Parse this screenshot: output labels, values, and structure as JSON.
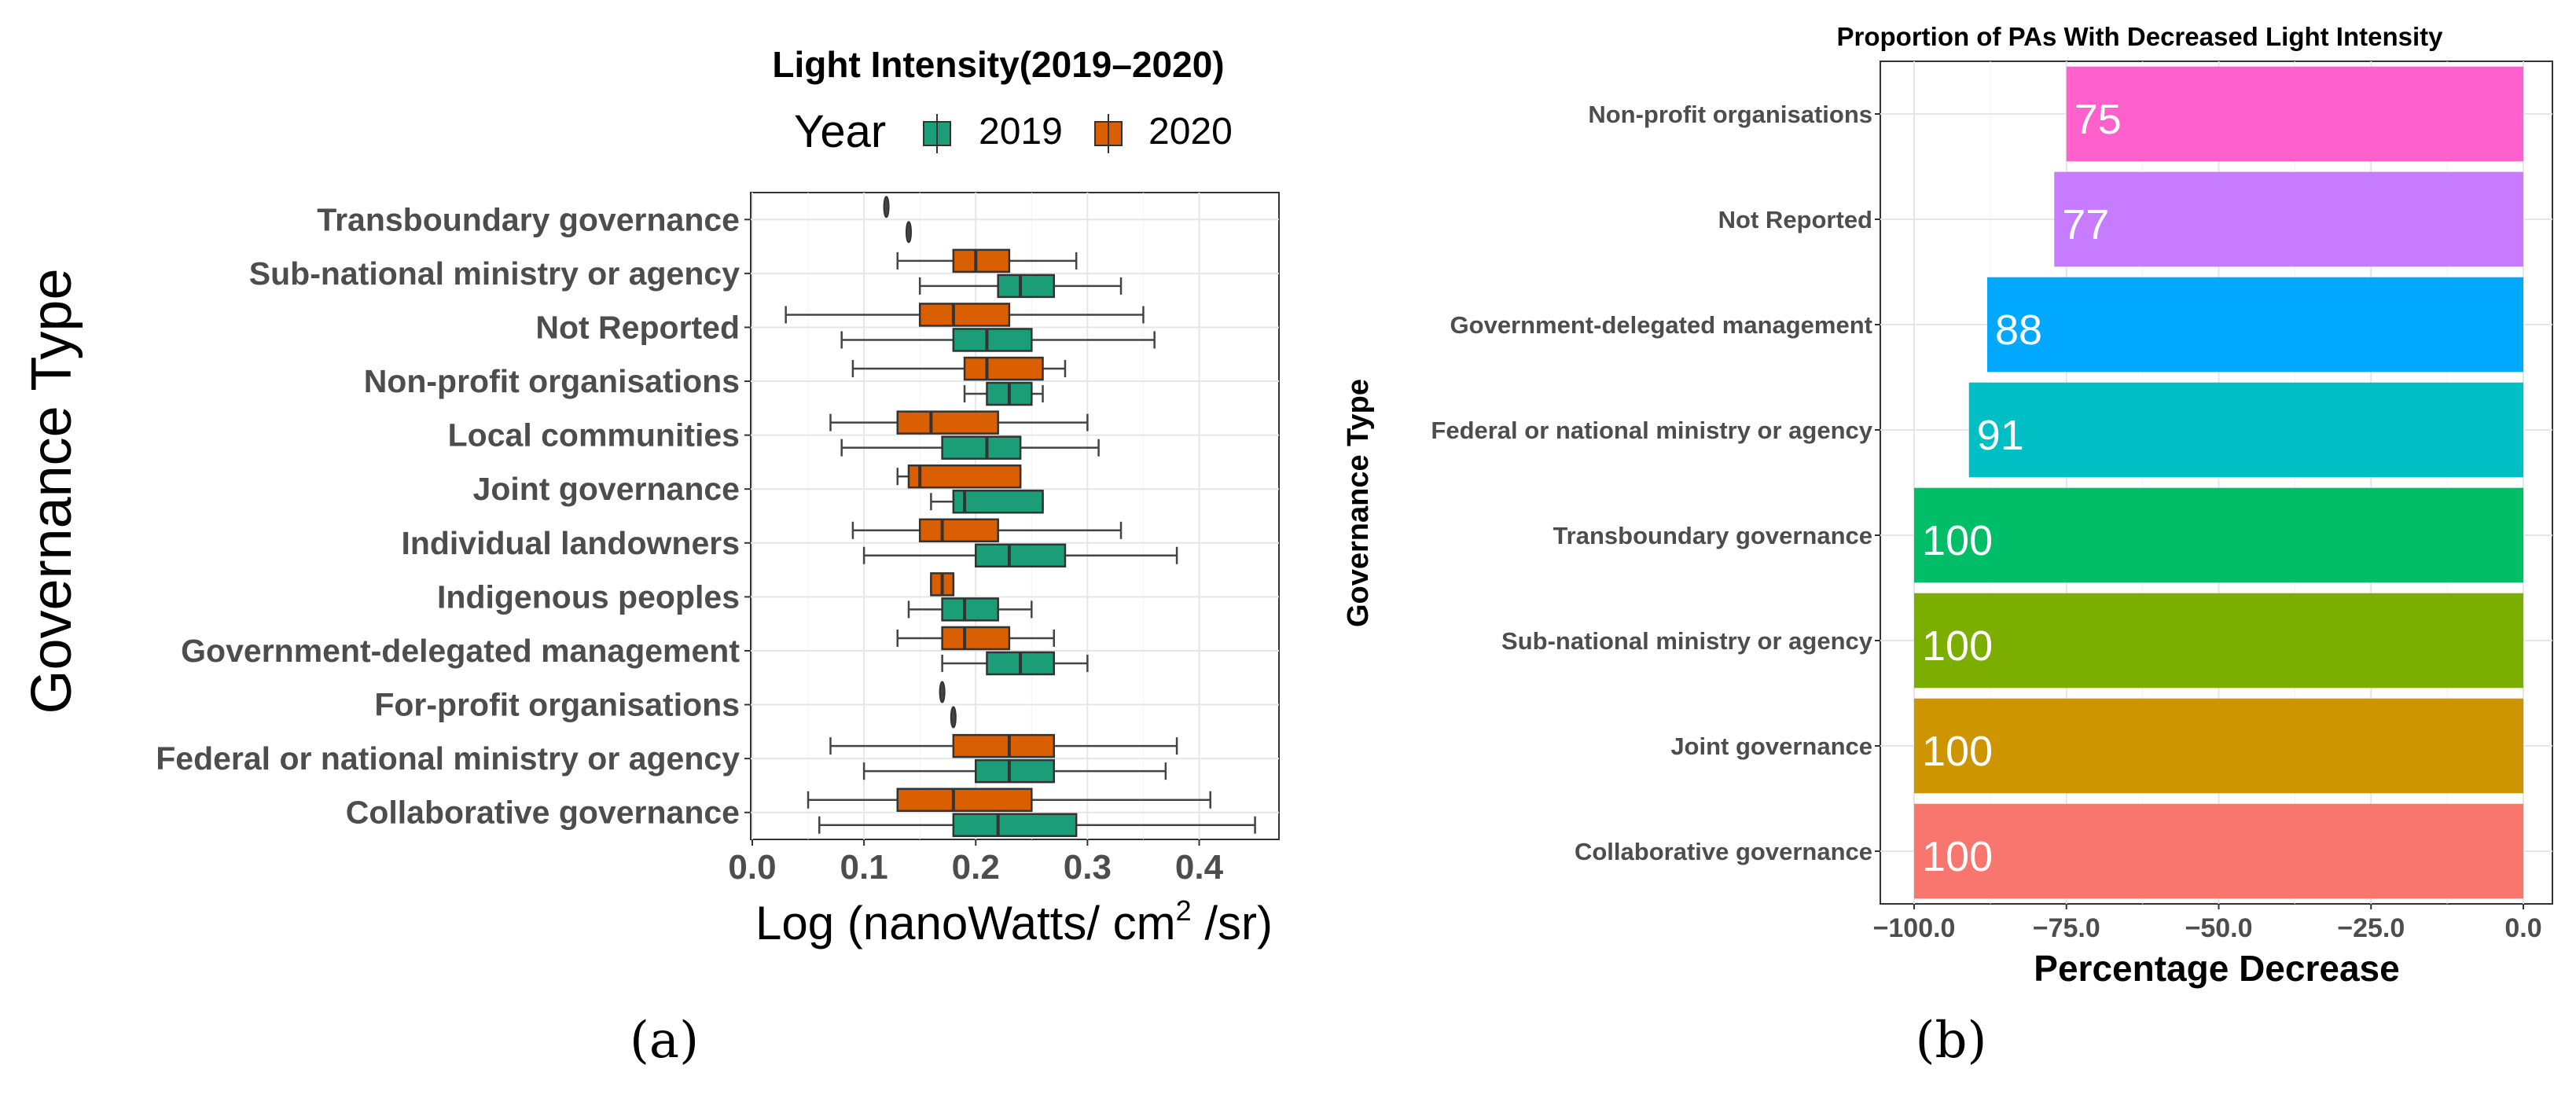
{
  "chart_data": [
    {
      "type": "boxplot",
      "panel_label": "(a)",
      "title": "Light Intensity(2019–2020)",
      "xlabel": "Log (nanoWatts/ cm",
      "xlabel_sup": "2",
      "xlabel_end": " /sr)",
      "ylabel": "Governance Type",
      "xlim": [
        0.0,
        0.47
      ],
      "xticks": [
        "0.0",
        "0.1",
        "0.2",
        "0.3",
        "0.4"
      ],
      "xtick_values": [
        0.0,
        0.1,
        0.2,
        0.3,
        0.4
      ],
      "legend": {
        "title": "Year",
        "entries": [
          "2019",
          "2020"
        ],
        "colors": [
          "#1b9e77",
          "#d95f02"
        ]
      },
      "categories": [
        "Transboundary governance",
        "Sub-national ministry or agency",
        "Not Reported",
        "Non-profit organisations",
        "Local communities",
        "Joint governance",
        "Individual landowners",
        "Indigenous peoples",
        "Government-delegated management",
        "For-profit organisations",
        "Federal or national ministry or agency",
        "Collaborative governance"
      ],
      "series": [
        {
          "name": "2020",
          "color": "#d95f02",
          "boxes": [
            {
              "min": 0.12,
              "q1": 0.12,
              "median": 0.12,
              "q3": 0.12,
              "max": 0.12
            },
            {
              "min": 0.13,
              "q1": 0.18,
              "median": 0.2,
              "q3": 0.23,
              "max": 0.29
            },
            {
              "min": 0.03,
              "q1": 0.15,
              "median": 0.18,
              "q3": 0.23,
              "max": 0.35
            },
            {
              "min": 0.09,
              "q1": 0.19,
              "median": 0.21,
              "q3": 0.26,
              "max": 0.28
            },
            {
              "min": 0.07,
              "q1": 0.13,
              "median": 0.16,
              "q3": 0.22,
              "max": 0.3
            },
            {
              "min": 0.13,
              "q1": 0.14,
              "median": 0.15,
              "q3": 0.24,
              "max": 0.24
            },
            {
              "min": 0.09,
              "q1": 0.15,
              "median": 0.17,
              "q3": 0.22,
              "max": 0.33
            },
            {
              "min": 0.16,
              "q1": 0.16,
              "median": 0.17,
              "q3": 0.18,
              "max": 0.18
            },
            {
              "min": 0.13,
              "q1": 0.17,
              "median": 0.19,
              "q3": 0.23,
              "max": 0.27
            },
            {
              "min": 0.17,
              "q1": 0.17,
              "median": 0.17,
              "q3": 0.17,
              "max": 0.17
            },
            {
              "min": 0.07,
              "q1": 0.18,
              "median": 0.23,
              "q3": 0.27,
              "max": 0.38
            },
            {
              "min": 0.05,
              "q1": 0.13,
              "median": 0.18,
              "q3": 0.25,
              "max": 0.41
            }
          ]
        },
        {
          "name": "2019",
          "color": "#1b9e77",
          "boxes": [
            {
              "min": 0.14,
              "q1": 0.14,
              "median": 0.14,
              "q3": 0.14,
              "max": 0.14
            },
            {
              "min": 0.15,
              "q1": 0.22,
              "median": 0.24,
              "q3": 0.27,
              "max": 0.33
            },
            {
              "min": 0.08,
              "q1": 0.18,
              "median": 0.21,
              "q3": 0.25,
              "max": 0.36
            },
            {
              "min": 0.19,
              "q1": 0.21,
              "median": 0.23,
              "q3": 0.25,
              "max": 0.26
            },
            {
              "min": 0.08,
              "q1": 0.17,
              "median": 0.21,
              "q3": 0.24,
              "max": 0.31
            },
            {
              "min": 0.16,
              "q1": 0.18,
              "median": 0.19,
              "q3": 0.26,
              "max": 0.26
            },
            {
              "min": 0.1,
              "q1": 0.2,
              "median": 0.23,
              "q3": 0.28,
              "max": 0.38
            },
            {
              "min": 0.14,
              "q1": 0.17,
              "median": 0.19,
              "q3": 0.22,
              "max": 0.25
            },
            {
              "min": 0.17,
              "q1": 0.21,
              "median": 0.24,
              "q3": 0.27,
              "max": 0.3
            },
            {
              "min": 0.18,
              "q1": 0.18,
              "median": 0.18,
              "q3": 0.18,
              "max": 0.18
            },
            {
              "min": 0.1,
              "q1": 0.2,
              "median": 0.23,
              "q3": 0.27,
              "max": 0.37
            },
            {
              "min": 0.06,
              "q1": 0.18,
              "median": 0.22,
              "q3": 0.29,
              "max": 0.45
            }
          ]
        }
      ]
    },
    {
      "type": "bar",
      "orientation": "horizontal",
      "panel_label": "(b)",
      "title": "Proportion of PAs With Decreased Light Intensity",
      "xlabel": "Percentage Decrease",
      "ylabel": "Governance Type",
      "xlim": [
        -100,
        0
      ],
      "xticks": [
        "−100.0",
        "−75.0",
        "−50.0",
        "−25.0",
        "0.0"
      ],
      "xtick_values": [
        -100,
        -75,
        -50,
        -25,
        0
      ],
      "categories": [
        "Non-profit organisations",
        "Not Reported",
        "Government-delegated management",
        "Federal or national ministry or agency",
        "Transboundary governance",
        "Sub-national ministry or agency",
        "Joint governance",
        "Collaborative governance"
      ],
      "values": [
        -75,
        -77,
        -88,
        -91,
        -100,
        -100,
        -100,
        -100
      ],
      "labels": [
        "75",
        "77",
        "88",
        "91",
        "100",
        "100",
        "100",
        "100"
      ],
      "colors": [
        "#ff61cc",
        "#c77cff",
        "#00a9ff",
        "#00bfc4",
        "#00be67",
        "#7cae00",
        "#cd9600",
        "#f8766d"
      ]
    }
  ]
}
